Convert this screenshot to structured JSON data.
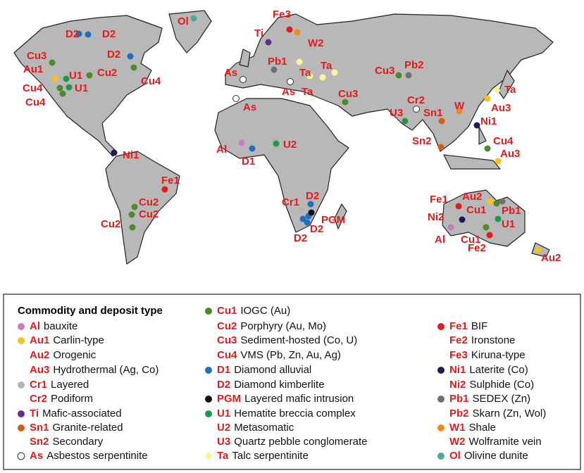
{
  "map": {
    "labels": [
      "Ol",
      "Fe3",
      "Ti",
      "W2",
      "D2",
      "D2",
      "D2",
      "Cu3",
      "Au1",
      "U1",
      "Cu2",
      "U1",
      "Cu4",
      "Cu4",
      "Cu4",
      "Pb1",
      "Ta",
      "Ta",
      "As",
      "As",
      "Ta",
      "As",
      "Cu3",
      "Cu3",
      "Pb2",
      "Cr2",
      "U3",
      "Sn1",
      "W",
      "Ta",
      "Au3",
      "Ni1",
      "Sn2",
      "Cu4",
      "Au3",
      "Al",
      "D1",
      "U2",
      "Ni1",
      "Fe1",
      "Cu2",
      "Cu2",
      "Cu2",
      "Cr1",
      "D2",
      "PGM",
      "D2",
      "D2",
      "Fe1",
      "Au2",
      "Cu1",
      "Pb1",
      "Ni2",
      "U1",
      "Al",
      "Cu1",
      "Fe2",
      "Au2"
    ]
  },
  "legend": {
    "title": "Commodity and deposit type",
    "items": [
      {
        "code": "Al",
        "desc": "bauxite",
        "color": "#c77cc0"
      },
      {
        "code": "Au1",
        "desc": "Carlin-type",
        "color": "#f7c21a"
      },
      {
        "code": "Au2",
        "desc": "Orogenic"
      },
      {
        "code": "Au3",
        "desc": "Hydrothermal (Ag, Co)"
      },
      {
        "code": "Cr1",
        "desc": "Layered",
        "color": "#b4b4b4"
      },
      {
        "code": "Cr2",
        "desc": "Podiform"
      },
      {
        "code": "Ti",
        "desc": "Mafic-associated",
        "color": "#6a2a8c"
      },
      {
        "code": "Sn1",
        "desc": "Granite-related",
        "color": "#d35f16"
      },
      {
        "code": "Sn2",
        "desc": "Secondary"
      },
      {
        "code": "As",
        "desc": "Asbestos serpentinite",
        "color": "#ffffff"
      },
      {
        "code": "Cu1",
        "desc": "IOGC (Au)",
        "color": "#4e8a2a"
      },
      {
        "code": "Cu2",
        "desc": "Porphyry (Au, Mo)"
      },
      {
        "code": "Cu3",
        "desc": "Sediment-hosted (Co, U)"
      },
      {
        "code": "Cu4",
        "desc": "VMS (Pb, Zn, Au, Ag)"
      },
      {
        "code": "D1",
        "desc": "Diamond alluvial",
        "color": "#1f6fbf"
      },
      {
        "code": "D2",
        "desc": "Diamond kimberlite"
      },
      {
        "code": "PGM",
        "desc": "Layered mafic intrusion",
        "color": "#111111"
      },
      {
        "code": "U1",
        "desc": "Hematite breccia complex",
        "color": "#1a9b4a"
      },
      {
        "code": "U2",
        "desc": "Metasomatic"
      },
      {
        "code": "U3",
        "desc": "Quartz pebble conglomerate"
      },
      {
        "code": "Ta",
        "desc": "Talc serpentinite",
        "color": "#fff59a"
      },
      {
        "code": "Fe1",
        "desc": "BIF",
        "color": "#e41a1c"
      },
      {
        "code": "Fe2",
        "desc": "Ironstone"
      },
      {
        "code": "Fe3",
        "desc": "Kiruna-type"
      },
      {
        "code": "Ni1",
        "desc": "Laterite (Co)",
        "color": "#1a1a5a"
      },
      {
        "code": "Ni2",
        "desc": "Sulphide (Co)"
      },
      {
        "code": "Pb1",
        "desc": "SEDEX (Zn)",
        "color": "#707070"
      },
      {
        "code": "Pb2",
        "desc": "Skarn (Zn, Wol)"
      },
      {
        "code": "W1",
        "desc": "Shale",
        "color": "#f08a24"
      },
      {
        "code": "W2",
        "desc": "Wolframite vein"
      },
      {
        "code": "Ol",
        "desc": "Olivine dunite",
        "color": "#4fa89a"
      }
    ]
  }
}
